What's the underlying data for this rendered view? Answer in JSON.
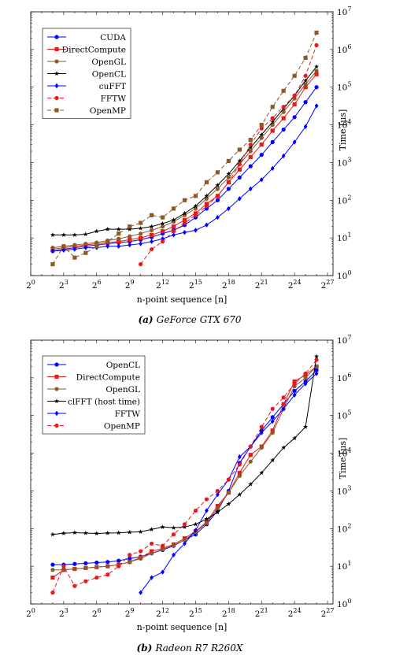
{
  "charts": [
    {
      "id": "a",
      "caption_label": "(a)",
      "caption_text": "GeForce GTX 670",
      "chart_data": {
        "type": "line",
        "x_scale": "log2",
        "y_scale": "log10",
        "xlim_exp": [
          0,
          27.5
        ],
        "ylim_exp": [
          0,
          7
        ],
        "x_tick_exponents": [
          0,
          3,
          6,
          9,
          12,
          15,
          18,
          21,
          24,
          27
        ],
        "y_tick_exponents": [
          0,
          1,
          2,
          3,
          4,
          5,
          6,
          7
        ],
        "xlabel": "n-point sequence [n]",
        "ylabel": "Time [μs]",
        "legend_position": "top-left",
        "series": [
          {
            "name": "CUDA",
            "color": "#0000ff",
            "marker": "circle",
            "dash": "",
            "x_exp": [
              2,
              3,
              4,
              5,
              6,
              7,
              8,
              9,
              10,
              11,
              12,
              13,
              14,
              15,
              16,
              17,
              18,
              19,
              20,
              21,
              22,
              23,
              24,
              25,
              26
            ],
            "y": [
              4.5,
              5,
              5.5,
              6,
              6.5,
              7,
              7.5,
              8,
              9,
              10.5,
              13,
              16,
              22,
              35,
              60,
              100,
              200,
              400,
              800,
              1600,
              3500,
              7500,
              16000,
              40000,
              100000
            ]
          },
          {
            "name": "DirectCompute",
            "color": "#e41a1c",
            "marker": "square",
            "dash": "",
            "x_exp": [
              2,
              3,
              4,
              5,
              6,
              7,
              8,
              9,
              10,
              11,
              12,
              13,
              14,
              15,
              16,
              17,
              18,
              19,
              20,
              21,
              22,
              23,
              24,
              25,
              26
            ],
            "y": [
              5,
              5.5,
              6,
              6.5,
              7,
              7.5,
              8,
              9,
              10,
              12,
              15,
              20,
              30,
              45,
              80,
              130,
              300,
              650,
              1400,
              3000,
              7000,
              15000,
              35000,
              100000,
              220000
            ]
          },
          {
            "name": "OpenGL",
            "color": "#8b5a2b",
            "marker": "circle",
            "dash": "",
            "x_exp": [
              2,
              3,
              4,
              5,
              6,
              7,
              8,
              9,
              10,
              11,
              12,
              13,
              14,
              15,
              16,
              17,
              18,
              19,
              20,
              21,
              22,
              23,
              24,
              25,
              26
            ],
            "y": [
              5.5,
              6,
              6.5,
              7,
              7.5,
              8.5,
              9.5,
              11,
              13,
              16,
              20,
              27,
              40,
              60,
              110,
              200,
              400,
              900,
              2000,
              4500,
              10000,
              22000,
              50000,
              120000,
              270000
            ]
          },
          {
            "name": "OpenCL",
            "color": "#000000",
            "marker": "star",
            "dash": "",
            "x_exp": [
              2,
              3,
              4,
              5,
              6,
              7,
              8,
              9,
              10,
              11,
              12,
              13,
              14,
              15,
              16,
              17,
              18,
              19,
              20,
              21,
              22,
              23,
              24,
              25,
              26
            ],
            "y": [
              12,
              12,
              12,
              12.5,
              15,
              17,
              17,
              17,
              18,
              20,
              24,
              30,
              45,
              70,
              130,
              250,
              500,
              1100,
              2500,
              5500,
              12000,
              27000,
              60000,
              150000,
              350000
            ]
          },
          {
            "name": "cuFFT",
            "color": "#0000ff",
            "marker": "diamond",
            "dash": "",
            "x_exp": [
              2,
              3,
              4,
              5,
              6,
              7,
              8,
              9,
              10,
              11,
              12,
              13,
              14,
              15,
              16,
              17,
              18,
              19,
              20,
              21,
              22,
              23,
              24,
              25,
              26
            ],
            "y": [
              4.5,
              4.7,
              5,
              5.5,
              5.5,
              6,
              6,
              6.5,
              7,
              8,
              9.5,
              12,
              14,
              16,
              22,
              35,
              60,
              110,
              200,
              350,
              700,
              1500,
              3500,
              9000,
              32000
            ]
          },
          {
            "name": "FFTW",
            "color": "#e41a1c",
            "marker": "circle",
            "dash": "5,3",
            "x_exp": [
              10,
              11,
              12,
              13,
              14,
              15,
              16,
              17,
              18,
              19,
              20,
              21,
              22,
              23,
              24,
              25,
              26
            ],
            "y": [
              2,
              5,
              8,
              15,
              25,
              40,
              70,
              130,
              300,
              900,
              3000,
              8000,
              15000,
              30000,
              60000,
              200000,
              1300000
            ]
          },
          {
            "name": "OpenMP",
            "color": "#8b5a2b",
            "marker": "square",
            "dash": "5,3",
            "x_exp": [
              2,
              3,
              4,
              5,
              6,
              7,
              8,
              9,
              10,
              11,
              12,
              13,
              14,
              15,
              16,
              17,
              18,
              19,
              20,
              21,
              22,
              23,
              24,
              25,
              26
            ],
            "y": [
              2,
              6,
              3,
              4,
              6,
              8,
              13,
              20,
              25,
              40,
              35,
              60,
              100,
              130,
              300,
              550,
              1100,
              2200,
              4000,
              10000,
              30000,
              80000,
              200000,
              600000,
              2800000
            ]
          }
        ]
      }
    },
    {
      "id": "b",
      "caption_label": "(b)",
      "caption_text": "Radeon R7 R260X",
      "chart_data": {
        "type": "line",
        "x_scale": "log2",
        "y_scale": "log10",
        "xlim_exp": [
          0,
          27.5
        ],
        "ylim_exp": [
          0,
          7
        ],
        "x_tick_exponents": [
          0,
          3,
          6,
          9,
          12,
          15,
          18,
          21,
          24,
          27
        ],
        "y_tick_exponents": [
          0,
          1,
          2,
          3,
          4,
          5,
          6,
          7
        ],
        "xlabel": "n-point sequence [n]",
        "ylabel": "Time [μs]",
        "legend_position": "top-left",
        "series": [
          {
            "name": "OpenCL",
            "color": "#0000ff",
            "marker": "circle",
            "dash": "",
            "x_exp": [
              2,
              3,
              4,
              5,
              6,
              7,
              8,
              9,
              10,
              11,
              12,
              13,
              14,
              15,
              16,
              17,
              18,
              19,
              20,
              21,
              22,
              23,
              24,
              25,
              26
            ],
            "y": [
              11,
              11,
              11.5,
              12,
              12.5,
              13,
              14,
              16,
              18,
              22,
              27,
              35,
              50,
              70,
              130,
              300,
              1000,
              5500,
              15000,
              40000,
              90000,
              200000,
              450000,
              800000,
              1600000
            ]
          },
          {
            "name": "DirectCompute",
            "color": "#e41a1c",
            "marker": "square",
            "dash": "",
            "x_exp": [
              2,
              3,
              4,
              5,
              6,
              7,
              8,
              9,
              10,
              11,
              12,
              13,
              14,
              15,
              16,
              17,
              18,
              19,
              20,
              21,
              22,
              23,
              24,
              25,
              26
            ],
            "y": [
              5,
              8,
              8.5,
              9,
              9.5,
              10,
              11,
              13,
              17,
              25,
              30,
              38,
              55,
              85,
              150,
              400,
              900,
              3000,
              9000,
              15000,
              40000,
              200000,
              800000,
              1200000,
              2000000
            ]
          },
          {
            "name": "OpenGL",
            "color": "#8b5a2b",
            "marker": "circle",
            "dash": "",
            "x_exp": [
              2,
              3,
              4,
              5,
              6,
              7,
              8,
              9,
              10,
              11,
              12,
              13,
              14,
              15,
              16,
              17,
              18,
              19,
              20,
              21,
              22,
              23,
              24,
              25,
              26
            ],
            "y": [
              8,
              8,
              8.5,
              9,
              9.5,
              10,
              11,
              13,
              16,
              22,
              28,
              36,
              50,
              80,
              140,
              350,
              900,
              2500,
              6000,
              14000,
              35000,
              150000,
              600000,
              1000000,
              2000000
            ]
          },
          {
            "name": "clFFT (host time)",
            "color": "#000000",
            "marker": "star",
            "dash": "",
            "x_exp": [
              2,
              3,
              4,
              5,
              6,
              7,
              8,
              9,
              10,
              11,
              12,
              13,
              14,
              15,
              16,
              17,
              18,
              19,
              20,
              21,
              22,
              23,
              24,
              25,
              26
            ],
            "y": [
              70,
              75,
              78,
              76,
              74,
              76,
              77,
              80,
              82,
              95,
              110,
              105,
              110,
              130,
              180,
              270,
              450,
              800,
              1500,
              3000,
              6500,
              14000,
              25000,
              50000,
              3700000
            ]
          },
          {
            "name": "FFTW",
            "color": "#0000ff",
            "marker": "diamond",
            "dash": "",
            "x_exp": [
              10,
              11,
              12,
              13,
              14,
              15,
              16,
              17,
              18,
              19,
              20,
              21,
              22,
              23,
              24,
              25,
              26
            ],
            "y": [
              2,
              5,
              7,
              20,
              40,
              90,
              300,
              800,
              2000,
              8000,
              15000,
              35000,
              70000,
              150000,
              350000,
              700000,
              1300000
            ]
          },
          {
            "name": "OpenMP",
            "color": "#e41a1c",
            "marker": "circle",
            "dash": "5,3",
            "x_exp": [
              2,
              3,
              4,
              5,
              6,
              7,
              8,
              9,
              10,
              11,
              12,
              13,
              14,
              15,
              16,
              17,
              18,
              19,
              20,
              21,
              22,
              23,
              24,
              25,
              26
            ],
            "y": [
              2,
              10,
              3,
              4,
              5,
              6,
              10,
              20,
              25,
              40,
              35,
              70,
              130,
              300,
              600,
              1000,
              2000,
              5000,
              15000,
              50000,
              150000,
              300000,
              700000,
              1300000,
              3000000
            ]
          }
        ]
      }
    }
  ]
}
